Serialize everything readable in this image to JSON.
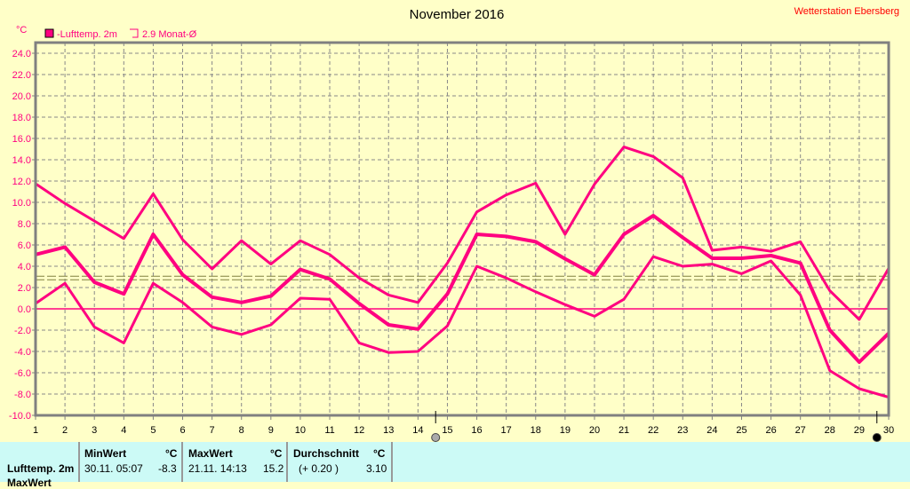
{
  "header": {
    "title": "November 2016",
    "station": "Wetterstation Ebersberg"
  },
  "chart_data": {
    "type": "line",
    "title": "November 2016",
    "ylabel": "°C",
    "ylim": [
      -10,
      24
    ],
    "yticks": [
      "24.0",
      "22.0",
      "20.0",
      "18.0",
      "16.0",
      "14.0",
      "12.0",
      "10.0",
      "8.0",
      "6.0",
      "4.0",
      "2.0",
      "0.0",
      "-2.0",
      "-4.0",
      "-6.0",
      "-8.0",
      "-10.0"
    ],
    "x": [
      1,
      2,
      3,
      4,
      5,
      6,
      7,
      8,
      9,
      10,
      11,
      12,
      13,
      14,
      15,
      16,
      17,
      18,
      19,
      20,
      21,
      22,
      23,
      24,
      25,
      26,
      27,
      28,
      29,
      30
    ],
    "grid": true,
    "legend": [
      {
        "label": "-Lufttemp. 2m",
        "color": "#ff0080",
        "filled": true
      },
      {
        "label": "2.9 Monat-Ø",
        "color": "#ff0080",
        "filled": false
      }
    ],
    "legend_position": "top-left",
    "month_mean": 2.9,
    "series": [
      {
        "name": "Max",
        "values": [
          11.75,
          9.9,
          8.25,
          6.6,
          10.8,
          6.5,
          3.75,
          6.4,
          4.2,
          6.4,
          5.1,
          2.9,
          1.3,
          0.6,
          4.3,
          9.1,
          10.7,
          11.8,
          7.0,
          11.7,
          15.2,
          14.3,
          12.3,
          5.5,
          5.8,
          5.4,
          6.3,
          1.7,
          -1.0,
          3.8
        ]
      },
      {
        "name": "Mittel",
        "values": [
          5.1,
          5.8,
          2.5,
          1.4,
          7.0,
          3.2,
          1.1,
          0.6,
          1.2,
          3.7,
          2.8,
          0.5,
          -1.5,
          -1.9,
          1.4,
          7.0,
          6.8,
          6.3,
          4.7,
          3.2,
          7.0,
          8.75,
          6.7,
          4.75,
          4.75,
          5.0,
          4.3,
          -2.0,
          -5.0,
          -2.3
        ]
      },
      {
        "name": "Min",
        "values": [
          0.5,
          2.4,
          -1.7,
          -3.2,
          2.4,
          0.6,
          -1.7,
          -2.4,
          -1.5,
          1.0,
          0.9,
          -3.2,
          -4.1,
          -4.0,
          -1.6,
          4.0,
          2.9,
          1.6,
          0.4,
          -0.7,
          0.9,
          4.9,
          4.0,
          4.2,
          3.3,
          4.5,
          1.3,
          -5.8,
          -7.5,
          -8.3
        ]
      }
    ],
    "moon_phases": [
      {
        "day": 14.6,
        "phase": "full-moon"
      },
      {
        "day": 29.6,
        "phase": "new-moon"
      }
    ],
    "colors": {
      "line": "#ff0080",
      "grid": "#888888",
      "frame": "#808080",
      "axis_text": "#ff0080",
      "mean": "#808040"
    }
  },
  "stats": {
    "row_label": "Lufttemp. 2m",
    "row2_label": "MaxWert",
    "min": {
      "header": "MinWert",
      "unit": "°C",
      "date": "30.11.  05:07",
      "value": "-8.3"
    },
    "max": {
      "header": "MaxWert",
      "unit": "°C",
      "date": "21.11.  14:13",
      "value": "15.2"
    },
    "avg": {
      "header": "Durchschnitt",
      "unit": "°C",
      "delta": "(+ 0.20 )",
      "value": "3.10"
    }
  }
}
